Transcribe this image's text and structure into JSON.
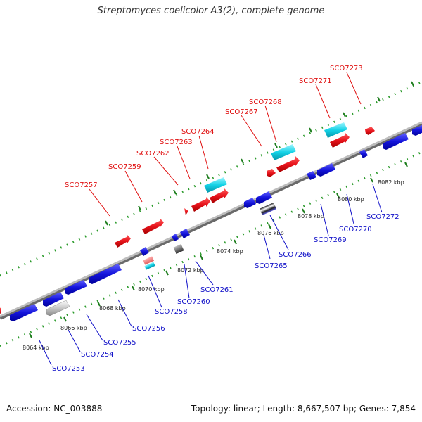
{
  "title": "Streptomyces coelicolor A3(2), complete genome",
  "footer": {
    "accession": "Accession: NC_003888",
    "summary": "Topology: linear; Length: 8,667,507 bp; Genes: 7,854"
  },
  "colors": {
    "forward": "#e8141c",
    "reverse": "#1414dc",
    "cyan": "#14d2e6",
    "backbone": "#999999",
    "dots": "#2a9a2a"
  },
  "ticks": [
    "8064 kbp",
    "8066 kbp",
    "8068 kbp",
    "8070 kbp",
    "8072 kbp",
    "8074 kbp",
    "8076 kbp",
    "8078 kbp",
    "8080 kbp",
    "8082 kbp"
  ],
  "forward_labels": [
    "SCO7257",
    "SCO7259",
    "SCO7262",
    "SCO7263",
    "SCO7264",
    "SCO7267",
    "SCO7268",
    "SCO7271",
    "SCO7273"
  ],
  "reverse_labels": [
    "SCO7253",
    "SCO7254",
    "SCO7255",
    "SCO7256",
    "SCO7258",
    "SCO7260",
    "SCO7261",
    "SCO7265",
    "SCO7266",
    "SCO7269",
    "SCO7270",
    "SCO7272"
  ]
}
